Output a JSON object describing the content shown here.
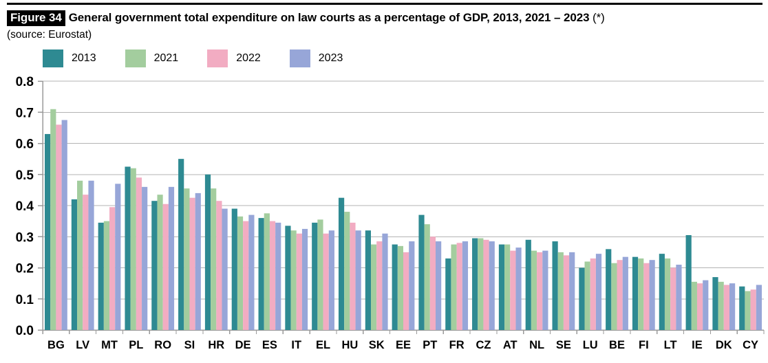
{
  "header": {
    "figure_label": "Figure 34",
    "title": "General government total expenditure on law courts as a percentage of GDP, 2013, 2021 – 2023",
    "title_suffix": "(*)",
    "source": "(source: Eurostat)"
  },
  "legend": {
    "position": "top",
    "items": [
      {
        "label": "2013",
        "color": "#2E8A92"
      },
      {
        "label": "2021",
        "color": "#A3CD9E"
      },
      {
        "label": "2022",
        "color": "#F2ACC2"
      },
      {
        "label": "2023",
        "color": "#97A6D8"
      }
    ]
  },
  "colors": {
    "gridline": "#B3B3B3",
    "axis": "#999999",
    "text": "#000000"
  },
  "chart_data": {
    "type": "bar",
    "title": "General government total expenditure on law courts as a percentage of GDP, 2013, 2021 – 2023 (*)",
    "xlabel": "",
    "ylabel": "",
    "ylim": [
      0,
      0.8
    ],
    "ytick_step": 0.1,
    "grid": true,
    "legend_position": "top",
    "categories": [
      "BG",
      "LV",
      "MT",
      "PL",
      "RO",
      "SI",
      "HR",
      "DE",
      "ES",
      "IT",
      "EL",
      "HU",
      "SK",
      "EE",
      "PT",
      "FR",
      "CZ",
      "AT",
      "NL",
      "SE",
      "LU",
      "BE",
      "FI",
      "LT",
      "IE",
      "DK",
      "CY"
    ],
    "series": [
      {
        "name": "2013",
        "color": "#2E8A92",
        "values": [
          0.63,
          0.42,
          0.345,
          0.525,
          0.415,
          0.55,
          0.5,
          0.39,
          0.36,
          0.335,
          0.345,
          0.425,
          0.32,
          0.275,
          0.37,
          0.23,
          0.295,
          0.275,
          0.29,
          0.285,
          0.2,
          0.26,
          0.235,
          0.245,
          0.305,
          0.17,
          0.14
        ]
      },
      {
        "name": "2021",
        "color": "#A3CD9E",
        "values": [
          0.71,
          0.48,
          0.35,
          0.52,
          0.435,
          0.455,
          0.455,
          0.365,
          0.375,
          0.32,
          0.355,
          0.38,
          0.275,
          0.27,
          0.34,
          0.275,
          0.295,
          0.275,
          0.255,
          0.25,
          0.22,
          0.215,
          0.23,
          0.23,
          0.155,
          0.155,
          0.125
        ]
      },
      {
        "name": "2022",
        "color": "#F2ACC2",
        "values": [
          0.66,
          0.435,
          0.395,
          0.49,
          0.405,
          0.425,
          0.415,
          0.35,
          0.35,
          0.31,
          0.31,
          0.345,
          0.285,
          0.25,
          0.3,
          0.28,
          0.29,
          0.255,
          0.25,
          0.24,
          0.23,
          0.225,
          0.215,
          0.2,
          0.15,
          0.145,
          0.13
        ]
      },
      {
        "name": "2023",
        "color": "#97A6D8",
        "values": [
          0.675,
          0.48,
          0.47,
          0.46,
          0.46,
          0.44,
          0.39,
          0.37,
          0.345,
          0.325,
          0.32,
          0.32,
          0.31,
          0.285,
          0.285,
          0.285,
          0.285,
          0.265,
          0.255,
          0.25,
          0.245,
          0.235,
          0.225,
          0.21,
          0.16,
          0.15,
          0.145
        ]
      }
    ],
    "ytick_labels": [
      "0.0",
      "0.1",
      "0.2",
      "0.3",
      "0.4",
      "0.5",
      "0.6",
      "0.7",
      "0.8"
    ]
  }
}
